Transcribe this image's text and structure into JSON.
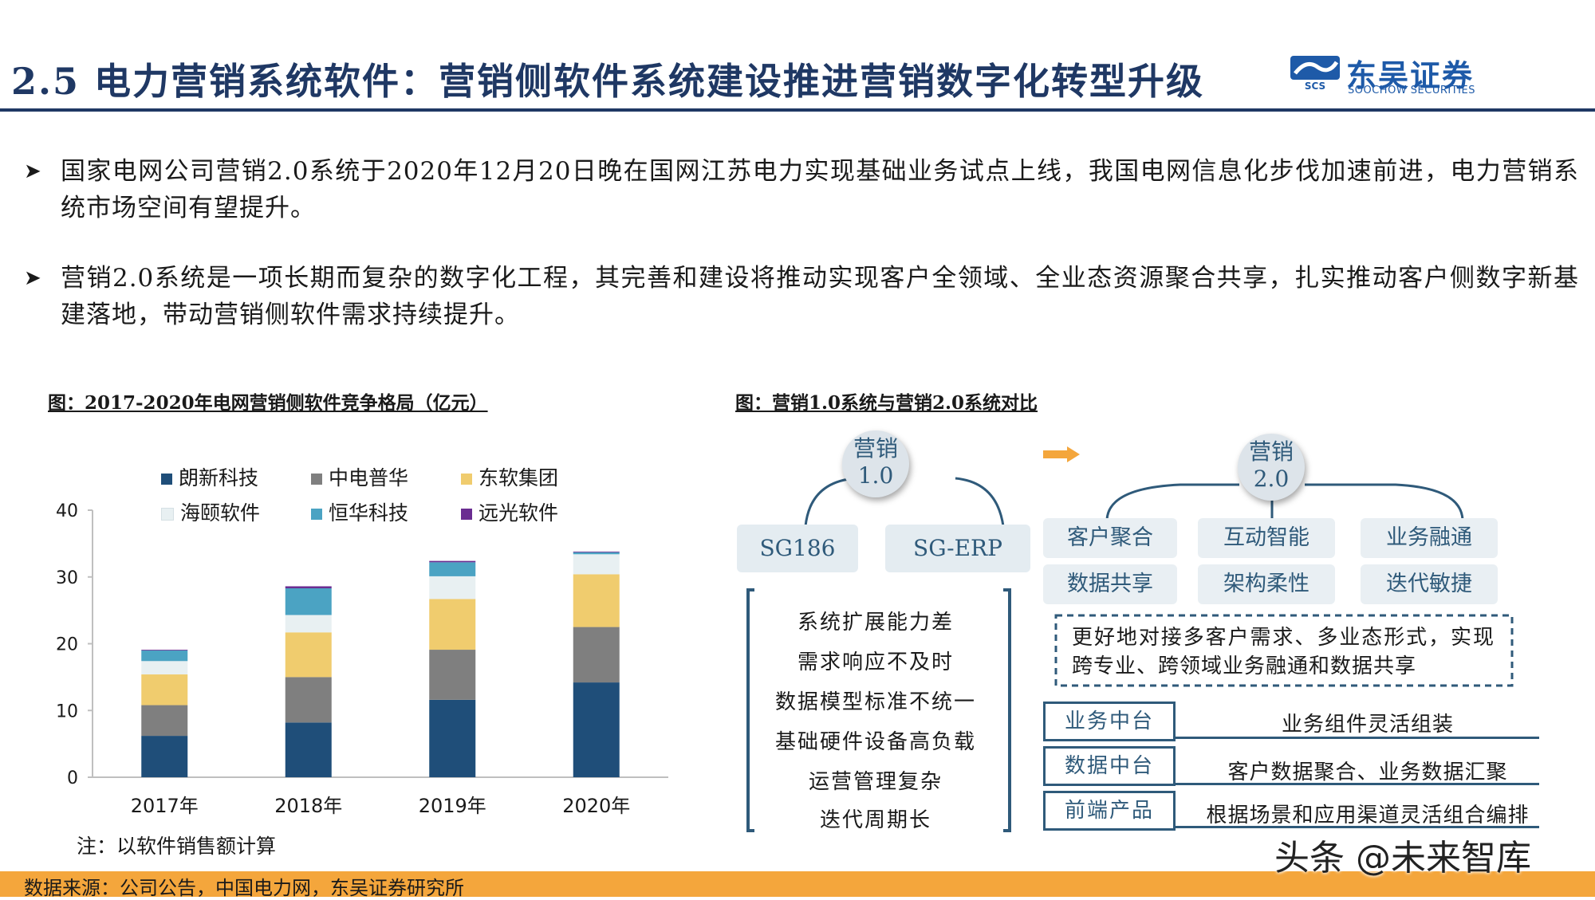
{
  "header": {
    "title": "2.5 电力营销系统软件：营销侧软件系统建设推进营销数字化转型升级",
    "logo_name": "东吴证券",
    "logo_en": "SOOCHOW SECURITIES",
    "logo_mark_text": "SCS",
    "brand_color": "#1f3864"
  },
  "bullets": [
    {
      "icon": "arrow-bullet-icon",
      "text": "国家电网公司营销2.0系统于2020年12月20日晚在国网江苏电力实现基础业务试点上线，我国电网信息化步伐加速前进，电力营销系统市场空间有望提升。"
    },
    {
      "icon": "arrow-bullet-icon",
      "text": "营销2.0系统是一项长期而复杂的数字化工程，其完善和建设将推动实现客户全领域、全业态资源聚合共享，扎实推动客户侧数字新基建落地，带动营销侧软件需求持续提升。"
    }
  ],
  "left_caption": "图：2017-2020年电网营销侧软件竞争格局（亿元）",
  "right_caption": "图：营销1.0系统与营销2.0系统对比",
  "chart_note": "注：以软件销售额计算",
  "chart_data": {
    "type": "bar",
    "stacked": true,
    "categories": [
      "2017年",
      "2018年",
      "2019年",
      "2020年"
    ],
    "series": [
      {
        "name": "朗新科技",
        "color": "#1f4e79",
        "values": [
          6.2,
          8.2,
          11.6,
          14.2
        ]
      },
      {
        "name": "中电普华",
        "color": "#7f7f7f",
        "values": [
          4.6,
          6.8,
          7.5,
          8.3
        ]
      },
      {
        "name": "东软集团",
        "color": "#f0cc6e",
        "values": [
          4.6,
          6.7,
          7.6,
          7.9
        ]
      },
      {
        "name": "海颐软件",
        "color": "#e8f0f2",
        "values": [
          2.0,
          2.6,
          3.4,
          3.0
        ]
      },
      {
        "name": "恒华科技",
        "color": "#4ba3c3",
        "values": [
          1.6,
          4.0,
          2.1,
          0.3
        ]
      },
      {
        "name": "远光软件",
        "color": "#6a2c91",
        "values": [
          0.1,
          0.3,
          0.2,
          0.1
        ]
      }
    ],
    "yticks": [
      0,
      10,
      20,
      30,
      40
    ],
    "ylim": [
      0,
      40
    ],
    "grid": false,
    "legend_position": "top"
  },
  "diagram": {
    "v1": {
      "circle_line1": "营销",
      "circle_line2": "1.0",
      "systems": [
        "SG186",
        "SG-ERP"
      ],
      "problems": [
        "系统扩展能力差",
        "需求响应不及时",
        "数据模型标准不统一",
        "基础硬件设备高负载",
        "运营管理复杂",
        "迭代周期长"
      ]
    },
    "v2": {
      "circle_line1": "营销",
      "circle_line2": "2.0",
      "features": [
        "客户聚合",
        "互动智能",
        "业务融通",
        "数据共享",
        "架构柔性",
        "迭代敏捷"
      ],
      "summary": "更好地对接多客户需求、多业态形式，实现跨专业、跨领域业务融通和数据共享",
      "rows": [
        {
          "label": "业务中台",
          "desc": "业务组件灵活组装"
        },
        {
          "label": "数据中台",
          "desc": "客户数据聚合、业务数据汇聚"
        },
        {
          "label": "前端产品",
          "desc": "根据场景和应用渠道灵活组合编排"
        }
      ]
    },
    "arrow_color": "#f4a63c",
    "accent_color": "#2f5a7a"
  },
  "footer": {
    "source": "数据来源：公司公告，中国电力网，东吴证券研究所",
    "watermark": "头条 @未来智库",
    "bar_color": "#f4a63c"
  }
}
